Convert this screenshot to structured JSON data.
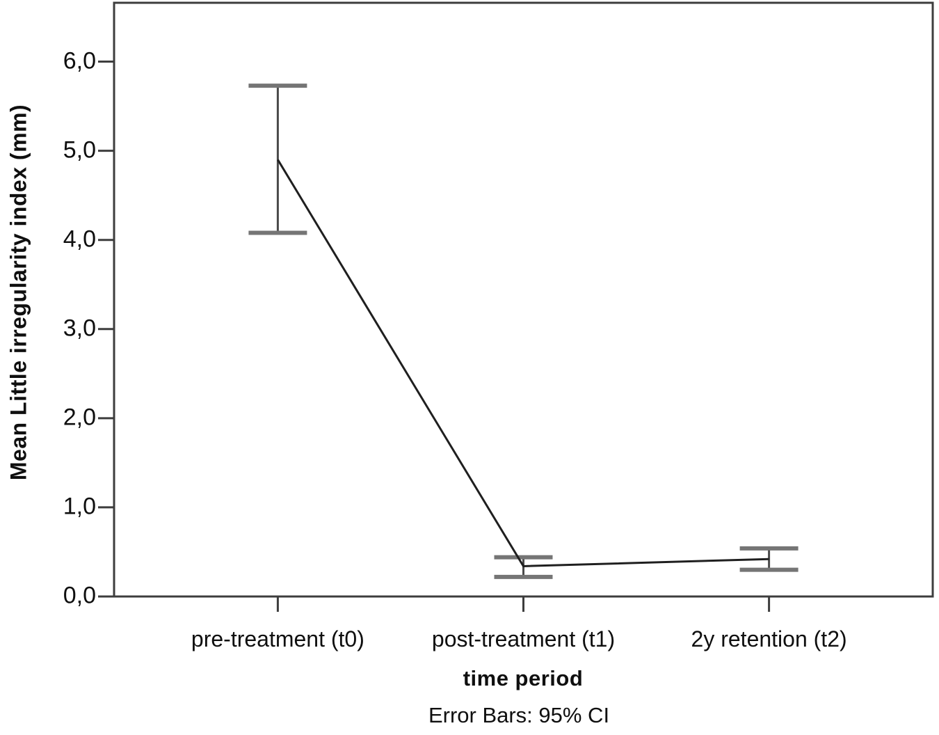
{
  "figure": {
    "caption": "Error Bars: 95% CI"
  },
  "chart_data": {
    "type": "line",
    "title": "",
    "ylabel": "Mean Little irregularity index (mm)",
    "xlabel": "time period",
    "categories": [
      "pre-treatment (t0)",
      "post-treatment (t1)",
      "2y retention (t2)"
    ],
    "series": [
      {
        "name": "Mean Little irregularity index (mm)",
        "values": [
          4.9,
          0.34,
          0.42
        ],
        "ci_low": [
          4.08,
          0.22,
          0.3
        ],
        "ci_high": [
          5.73,
          0.44,
          0.54
        ]
      }
    ],
    "error_bar_note": "Error Bars: 95% CI",
    "ylim": [
      0,
      6.66
    ],
    "yticks": [
      0,
      1,
      2,
      3,
      4,
      5,
      6
    ],
    "ytick_labels": [
      "0,0",
      "1,0",
      "2,0",
      "3,0",
      "4,0",
      "5,0",
      "6,0"
    ],
    "grid": false,
    "legend": "none",
    "colors": {
      "line": "#1f1f1f",
      "error_stem": "#4a4a4a",
      "error_cap": "#757575",
      "axis": "#3d3d3d",
      "text": "#0f0f0f",
      "background": "#ffffff"
    }
  }
}
